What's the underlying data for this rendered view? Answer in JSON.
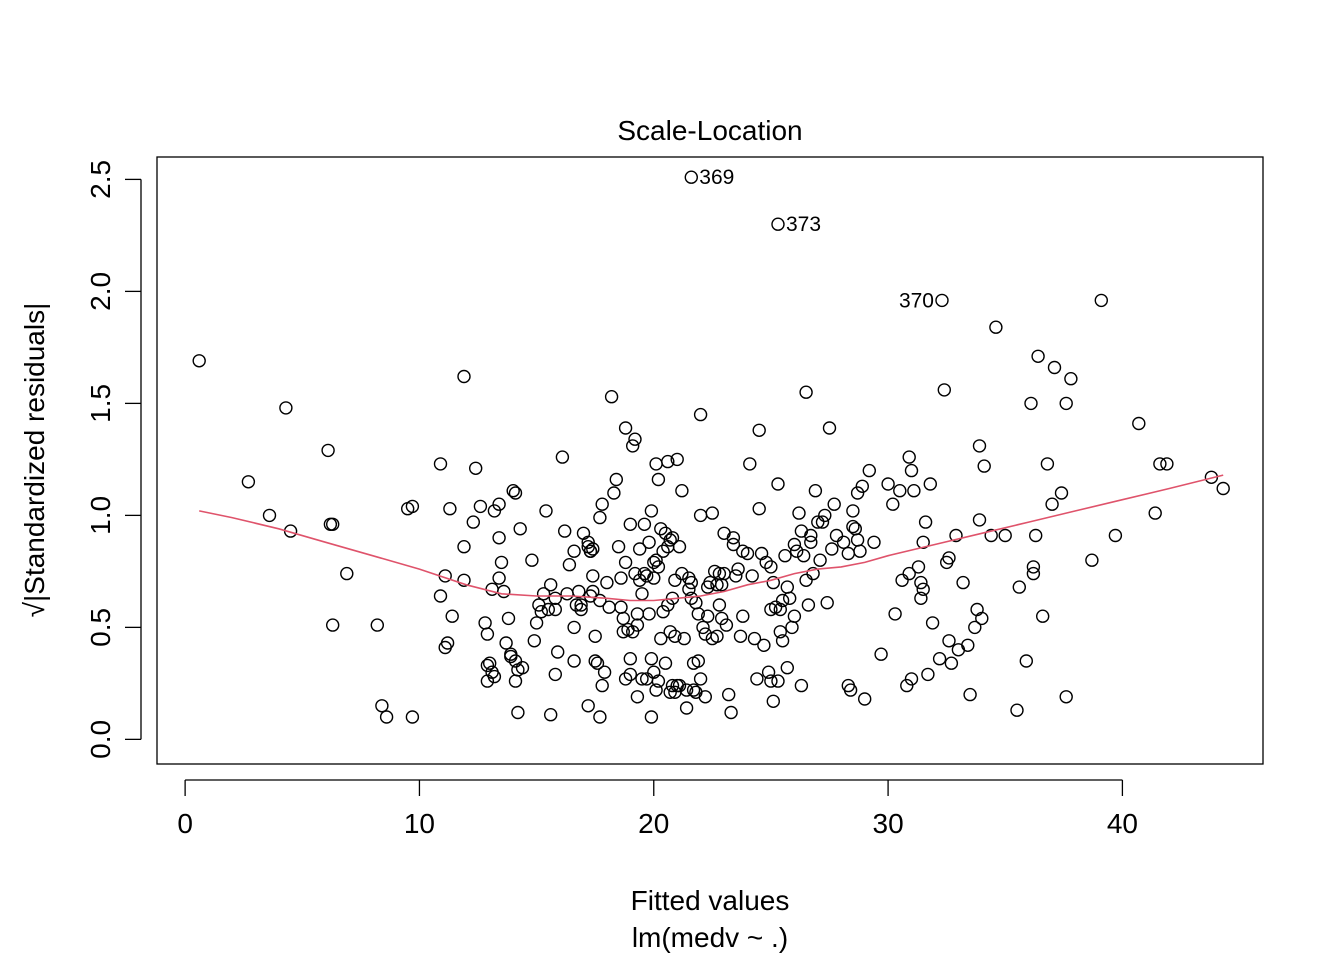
{
  "chart_data": {
    "type": "scatter",
    "title": "Scale-Location",
    "xlabel": "Fitted values",
    "xlabel_sub": "lm(medv ~ .)",
    "ylabel": "√|Standardized residuals|",
    "xlim": [
      -1.2,
      46.0
    ],
    "ylim": [
      -0.11,
      2.6
    ],
    "xticks": [
      0,
      10,
      20,
      30,
      40
    ],
    "yticks": [
      0.0,
      0.5,
      1.0,
      1.5,
      2.0,
      2.5
    ],
    "ytick_labels": [
      "0.0",
      "0.5",
      "1.0",
      "1.5",
      "2.0",
      "2.5"
    ],
    "point_color": "#000000",
    "smooth_color": "#DF536B",
    "grid": false,
    "legend": "none",
    "labeled_points": [
      {
        "label": "369",
        "x": 21.6,
        "y": 2.51,
        "side": "right"
      },
      {
        "label": "373",
        "x": 25.3,
        "y": 2.3,
        "side": "right"
      },
      {
        "label": "370",
        "x": 32.3,
        "y": 1.96,
        "side": "left"
      }
    ],
    "points": [
      [
        0.6,
        1.69
      ],
      [
        2.7,
        1.15
      ],
      [
        3.6,
        1.0
      ],
      [
        4.3,
        1.48
      ],
      [
        4.5,
        0.93
      ],
      [
        6.1,
        1.29
      ],
      [
        6.2,
        0.96
      ],
      [
        6.3,
        0.96
      ],
      [
        6.3,
        0.51
      ],
      [
        6.9,
        0.74
      ],
      [
        8.2,
        0.51
      ],
      [
        8.4,
        0.15
      ],
      [
        8.6,
        0.1
      ],
      [
        9.5,
        1.03
      ],
      [
        9.7,
        1.04
      ],
      [
        9.7,
        0.1
      ],
      [
        10.9,
        1.23
      ],
      [
        10.9,
        0.64
      ],
      [
        11.1,
        0.41
      ],
      [
        11.1,
        0.73
      ],
      [
        11.2,
        0.43
      ],
      [
        11.3,
        1.03
      ],
      [
        11.4,
        0.55
      ],
      [
        11.9,
        1.62
      ],
      [
        11.9,
        0.86
      ],
      [
        11.9,
        0.71
      ],
      [
        12.3,
        0.97
      ],
      [
        12.4,
        1.21
      ],
      [
        12.6,
        1.04
      ],
      [
        12.8,
        0.52
      ],
      [
        12.9,
        0.47
      ],
      [
        12.9,
        0.33
      ],
      [
        12.9,
        0.26
      ],
      [
        13.0,
        0.34
      ],
      [
        13.1,
        0.67
      ],
      [
        13.1,
        0.3
      ],
      [
        13.2,
        1.02
      ],
      [
        13.2,
        0.28
      ],
      [
        13.4,
        0.72
      ],
      [
        13.4,
        0.9
      ],
      [
        13.4,
        1.05
      ],
      [
        13.5,
        0.79
      ],
      [
        13.6,
        0.66
      ],
      [
        13.7,
        0.43
      ],
      [
        13.8,
        0.54
      ],
      [
        13.9,
        0.37
      ],
      [
        13.9,
        0.38
      ],
      [
        14.0,
        1.11
      ],
      [
        14.1,
        1.1
      ],
      [
        14.1,
        0.26
      ],
      [
        14.1,
        0.35
      ],
      [
        14.2,
        0.31
      ],
      [
        14.2,
        0.12
      ],
      [
        14.3,
        0.94
      ],
      [
        14.4,
        0.32
      ],
      [
        14.8,
        0.8
      ],
      [
        14.9,
        0.44
      ],
      [
        15.0,
        0.52
      ],
      [
        15.1,
        0.6
      ],
      [
        15.2,
        0.57
      ],
      [
        15.3,
        0.65
      ],
      [
        15.4,
        1.02
      ],
      [
        15.5,
        0.58
      ],
      [
        15.6,
        0.69
      ],
      [
        15.6,
        0.11
      ],
      [
        15.8,
        0.29
      ],
      [
        15.8,
        0.63
      ],
      [
        15.8,
        0.58
      ],
      [
        15.9,
        0.39
      ],
      [
        16.1,
        1.26
      ],
      [
        16.2,
        0.93
      ],
      [
        16.3,
        0.65
      ],
      [
        16.4,
        0.78
      ],
      [
        16.6,
        0.84
      ],
      [
        16.6,
        0.5
      ],
      [
        16.6,
        0.35
      ],
      [
        16.7,
        0.6
      ],
      [
        16.8,
        0.66
      ],
      [
        16.9,
        0.6
      ],
      [
        16.9,
        0.58
      ],
      [
        17.0,
        0.92
      ],
      [
        17.2,
        0.88
      ],
      [
        17.2,
        0.86
      ],
      [
        17.2,
        0.15
      ],
      [
        17.3,
        0.84
      ],
      [
        17.3,
        0.64
      ],
      [
        17.3,
        0.84
      ],
      [
        17.4,
        0.85
      ],
      [
        17.4,
        0.73
      ],
      [
        17.4,
        0.66
      ],
      [
        17.5,
        0.46
      ],
      [
        17.5,
        0.35
      ],
      [
        17.6,
        0.34
      ],
      [
        17.7,
        0.62
      ],
      [
        17.7,
        0.99
      ],
      [
        17.7,
        0.1
      ],
      [
        17.8,
        1.05
      ],
      [
        17.8,
        0.24
      ],
      [
        17.9,
        0.3
      ],
      [
        18.0,
        0.7
      ],
      [
        18.1,
        0.59
      ],
      [
        18.2,
        1.53
      ],
      [
        18.3,
        1.1
      ],
      [
        18.4,
        1.16
      ],
      [
        18.5,
        0.86
      ],
      [
        18.6,
        0.59
      ],
      [
        18.6,
        0.72
      ],
      [
        18.7,
        0.54
      ],
      [
        18.7,
        0.48
      ],
      [
        18.8,
        0.27
      ],
      [
        18.8,
        1.39
      ],
      [
        18.8,
        0.79
      ],
      [
        18.9,
        0.49
      ],
      [
        19.0,
        0.36
      ],
      [
        19.0,
        0.29
      ],
      [
        19.0,
        0.96
      ],
      [
        19.1,
        1.31
      ],
      [
        19.1,
        0.48
      ],
      [
        19.2,
        1.34
      ],
      [
        19.2,
        0.74
      ],
      [
        19.3,
        0.56
      ],
      [
        19.3,
        0.51
      ],
      [
        19.3,
        0.19
      ],
      [
        19.4,
        0.85
      ],
      [
        19.4,
        0.71
      ],
      [
        19.5,
        0.65
      ],
      [
        19.5,
        0.27
      ],
      [
        19.6,
        0.96
      ],
      [
        19.6,
        0.74
      ],
      [
        19.7,
        0.27
      ],
      [
        19.7,
        0.73
      ],
      [
        19.8,
        0.88
      ],
      [
        19.8,
        0.56
      ],
      [
        19.9,
        0.36
      ],
      [
        19.9,
        1.02
      ],
      [
        19.9,
        0.1
      ],
      [
        20.0,
        0.79
      ],
      [
        20.0,
        0.72
      ],
      [
        20.0,
        0.3
      ],
      [
        20.1,
        1.23
      ],
      [
        20.1,
        0.8
      ],
      [
        20.1,
        0.22
      ],
      [
        20.2,
        1.16
      ],
      [
        20.2,
        0.77
      ],
      [
        20.2,
        0.26
      ],
      [
        20.3,
        0.94
      ],
      [
        20.3,
        0.45
      ],
      [
        20.4,
        0.84
      ],
      [
        20.4,
        0.57
      ],
      [
        20.5,
        0.92
      ],
      [
        20.5,
        0.34
      ],
      [
        20.6,
        1.24
      ],
      [
        20.6,
        0.86
      ],
      [
        20.6,
        0.6
      ],
      [
        20.7,
        0.89
      ],
      [
        20.7,
        0.48
      ],
      [
        20.7,
        0.21
      ],
      [
        20.8,
        0.9
      ],
      [
        20.8,
        0.24
      ],
      [
        20.8,
        0.63
      ],
      [
        20.9,
        0.71
      ],
      [
        20.9,
        0.46
      ],
      [
        20.9,
        0.21
      ],
      [
        21.0,
        1.25
      ],
      [
        21.0,
        0.24
      ],
      [
        21.1,
        0.24
      ],
      [
        21.1,
        0.86
      ],
      [
        21.2,
        1.11
      ],
      [
        21.2,
        0.74
      ],
      [
        21.3,
        0.45
      ],
      [
        21.4,
        0.22
      ],
      [
        21.4,
        0.14
      ],
      [
        21.5,
        0.72
      ],
      [
        21.5,
        0.67
      ],
      [
        21.6,
        0.7
      ],
      [
        21.6,
        0.63
      ],
      [
        21.7,
        0.34
      ],
      [
        21.7,
        0.22
      ],
      [
        21.8,
        0.61
      ],
      [
        21.8,
        0.21
      ],
      [
        21.9,
        0.35
      ],
      [
        21.9,
        0.56
      ],
      [
        22.0,
        1.0
      ],
      [
        22.0,
        1.45
      ],
      [
        22.0,
        0.27
      ],
      [
        22.1,
        0.5
      ],
      [
        22.2,
        0.47
      ],
      [
        22.2,
        0.19
      ],
      [
        22.3,
        0.68
      ],
      [
        22.3,
        0.55
      ],
      [
        22.4,
        0.7
      ],
      [
        22.5,
        1.01
      ],
      [
        22.5,
        0.45
      ],
      [
        22.6,
        0.75
      ],
      [
        22.7,
        0.69
      ],
      [
        22.7,
        0.46
      ],
      [
        22.8,
        0.74
      ],
      [
        22.8,
        0.6
      ],
      [
        22.9,
        0.54
      ],
      [
        22.9,
        0.69
      ],
      [
        23.0,
        0.92
      ],
      [
        23.0,
        0.74
      ],
      [
        23.1,
        0.51
      ],
      [
        23.2,
        0.2
      ],
      [
        23.3,
        0.12
      ],
      [
        23.4,
        0.87
      ],
      [
        23.4,
        0.9
      ],
      [
        23.5,
        0.73
      ],
      [
        23.6,
        0.76
      ],
      [
        23.7,
        0.46
      ],
      [
        23.8,
        0.84
      ],
      [
        23.8,
        0.55
      ],
      [
        24.0,
        0.83
      ],
      [
        24.1,
        1.23
      ],
      [
        24.2,
        0.73
      ],
      [
        24.3,
        0.45
      ],
      [
        24.4,
        0.27
      ],
      [
        24.5,
        1.03
      ],
      [
        24.5,
        1.38
      ],
      [
        24.6,
        0.83
      ],
      [
        24.7,
        0.42
      ],
      [
        24.8,
        0.79
      ],
      [
        24.9,
        0.3
      ],
      [
        25.0,
        0.26
      ],
      [
        25.0,
        0.58
      ],
      [
        25.0,
        0.77
      ],
      [
        25.1,
        0.7
      ],
      [
        25.1,
        0.17
      ],
      [
        25.2,
        0.59
      ],
      [
        25.3,
        0.26
      ],
      [
        25.3,
        1.14
      ],
      [
        25.4,
        0.58
      ],
      [
        25.4,
        0.48
      ],
      [
        25.5,
        0.62
      ],
      [
        25.5,
        0.44
      ],
      [
        25.6,
        0.82
      ],
      [
        25.7,
        0.32
      ],
      [
        25.7,
        0.68
      ],
      [
        25.8,
        0.63
      ],
      [
        25.9,
        0.5
      ],
      [
        26.0,
        0.55
      ],
      [
        26.0,
        0.87
      ],
      [
        26.1,
        0.84
      ],
      [
        26.2,
        1.01
      ],
      [
        26.3,
        0.24
      ],
      [
        26.3,
        0.93
      ],
      [
        26.4,
        0.82
      ],
      [
        26.5,
        1.55
      ],
      [
        26.5,
        0.71
      ],
      [
        26.6,
        0.6
      ],
      [
        26.7,
        0.91
      ],
      [
        26.7,
        0.88
      ],
      [
        26.8,
        0.74
      ],
      [
        26.9,
        1.11
      ],
      [
        27.0,
        0.97
      ],
      [
        27.1,
        0.8
      ],
      [
        27.2,
        0.97
      ],
      [
        27.3,
        1.0
      ],
      [
        27.4,
        0.61
      ],
      [
        27.5,
        1.39
      ],
      [
        27.6,
        0.85
      ],
      [
        27.7,
        1.05
      ],
      [
        27.8,
        0.91
      ],
      [
        28.1,
        0.88
      ],
      [
        28.3,
        0.24
      ],
      [
        28.3,
        0.83
      ],
      [
        28.4,
        0.22
      ],
      [
        28.5,
        0.95
      ],
      [
        28.5,
        1.02
      ],
      [
        28.6,
        0.94
      ],
      [
        28.7,
        1.1
      ],
      [
        28.7,
        0.89
      ],
      [
        28.8,
        0.84
      ],
      [
        28.9,
        1.13
      ],
      [
        29.0,
        0.18
      ],
      [
        29.2,
        1.2
      ],
      [
        29.4,
        0.88
      ],
      [
        29.7,
        0.38
      ],
      [
        30.0,
        1.14
      ],
      [
        30.2,
        1.05
      ],
      [
        30.3,
        0.56
      ],
      [
        30.5,
        1.11
      ],
      [
        30.6,
        0.71
      ],
      [
        30.8,
        0.24
      ],
      [
        30.9,
        1.26
      ],
      [
        30.9,
        0.74
      ],
      [
        31.0,
        1.2
      ],
      [
        31.0,
        0.27
      ],
      [
        31.1,
        1.11
      ],
      [
        31.3,
        0.77
      ],
      [
        31.4,
        0.7
      ],
      [
        31.4,
        0.63
      ],
      [
        31.5,
        0.88
      ],
      [
        31.5,
        0.67
      ],
      [
        31.6,
        0.97
      ],
      [
        31.7,
        0.29
      ],
      [
        31.8,
        1.14
      ],
      [
        31.9,
        0.52
      ],
      [
        32.2,
        0.36
      ],
      [
        32.4,
        1.56
      ],
      [
        32.5,
        0.79
      ],
      [
        32.6,
        0.44
      ],
      [
        32.6,
        0.81
      ],
      [
        32.7,
        0.34
      ],
      [
        32.9,
        0.91
      ],
      [
        33.0,
        0.4
      ],
      [
        33.2,
        0.7
      ],
      [
        33.4,
        0.42
      ],
      [
        33.5,
        0.2
      ],
      [
        33.7,
        0.5
      ],
      [
        33.8,
        0.58
      ],
      [
        33.9,
        1.31
      ],
      [
        33.9,
        0.98
      ],
      [
        34.0,
        0.54
      ],
      [
        34.1,
        1.22
      ],
      [
        34.4,
        0.91
      ],
      [
        34.6,
        1.84
      ],
      [
        35.0,
        0.91
      ],
      [
        35.5,
        0.13
      ],
      [
        35.6,
        0.68
      ],
      [
        35.9,
        0.35
      ],
      [
        36.1,
        1.5
      ],
      [
        36.2,
        0.77
      ],
      [
        36.2,
        0.74
      ],
      [
        36.3,
        0.91
      ],
      [
        36.4,
        1.71
      ],
      [
        36.6,
        0.55
      ],
      [
        36.8,
        1.23
      ],
      [
        37.0,
        1.05
      ],
      [
        37.1,
        1.66
      ],
      [
        37.4,
        1.1
      ],
      [
        37.6,
        1.5
      ],
      [
        37.6,
        0.19
      ],
      [
        37.8,
        1.61
      ],
      [
        38.7,
        0.8
      ],
      [
        39.1,
        1.96
      ],
      [
        39.7,
        0.91
      ],
      [
        40.7,
        1.41
      ],
      [
        41.4,
        1.01
      ],
      [
        41.6,
        1.23
      ],
      [
        41.9,
        1.23
      ],
      [
        43.8,
        1.17
      ],
      [
        44.3,
        1.12
      ]
    ],
    "smooth_line": [
      [
        0.6,
        1.02
      ],
      [
        2.0,
        0.99
      ],
      [
        4.0,
        0.94
      ],
      [
        6.0,
        0.88
      ],
      [
        8.0,
        0.82
      ],
      [
        10.0,
        0.76
      ],
      [
        12.0,
        0.69
      ],
      [
        13.5,
        0.65
      ],
      [
        15.0,
        0.64
      ],
      [
        16.5,
        0.64
      ],
      [
        18.0,
        0.63
      ],
      [
        19.0,
        0.62
      ],
      [
        20.0,
        0.62
      ],
      [
        21.0,
        0.63
      ],
      [
        22.0,
        0.64
      ],
      [
        23.0,
        0.66
      ],
      [
        24.0,
        0.69
      ],
      [
        25.0,
        0.71
      ],
      [
        26.0,
        0.74
      ],
      [
        27.0,
        0.76
      ],
      [
        28.0,
        0.77
      ],
      [
        29.0,
        0.79
      ],
      [
        30.0,
        0.82
      ],
      [
        32.0,
        0.87
      ],
      [
        34.0,
        0.92
      ],
      [
        36.0,
        0.97
      ],
      [
        38.0,
        1.02
      ],
      [
        40.0,
        1.07
      ],
      [
        42.0,
        1.12
      ],
      [
        44.3,
        1.18
      ]
    ]
  }
}
